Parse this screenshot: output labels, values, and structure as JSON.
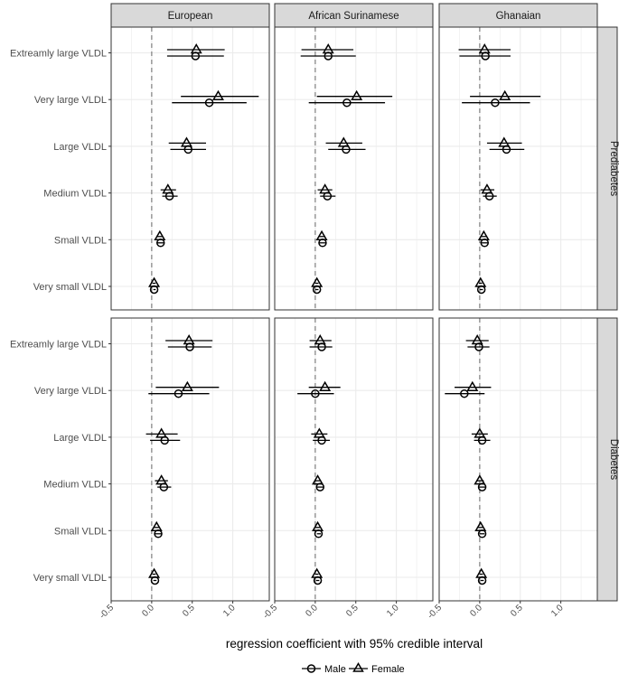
{
  "chart_data": {
    "type": "forest",
    "xlabel": "regression coefficient with 95% credible interval",
    "xlim": [
      -0.5,
      1.45
    ],
    "x_ticks": [
      -0.5,
      0.0,
      0.5,
      1.0
    ],
    "x_tick_labels": [
      "-0.5",
      "0.0",
      "0.5",
      "1.0"
    ],
    "reference_line": 0,
    "columns": [
      "European",
      "African Surinamese",
      "Ghanaian"
    ],
    "rows": [
      "Prediabetes",
      "Diabetes"
    ],
    "categories": [
      "Extreamly large VLDL",
      "Very large VLDL",
      "Large VLDL",
      "Medium VLDL",
      "Small VLDL",
      "Very small VLDL"
    ],
    "legend": [
      {
        "name": "Male",
        "marker": "circle"
      },
      {
        "name": "Female",
        "marker": "triangle"
      }
    ],
    "panels": [
      {
        "row": "Prediabetes",
        "column": "European",
        "male": [
          [
            0.54,
            0.19,
            0.89
          ],
          [
            0.71,
            0.25,
            1.17
          ],
          [
            0.45,
            0.23,
            0.67
          ],
          [
            0.22,
            0.13,
            0.32
          ],
          [
            0.11,
            0.07,
            0.15
          ],
          [
            0.03,
            0.02,
            0.05
          ]
        ],
        "female": [
          [
            0.55,
            0.19,
            0.9
          ],
          [
            0.82,
            0.36,
            1.32
          ],
          [
            0.43,
            0.21,
            0.67
          ],
          [
            0.2,
            0.11,
            0.3
          ],
          [
            0.1,
            0.06,
            0.14
          ],
          [
            0.03,
            0.01,
            0.05
          ]
        ]
      },
      {
        "row": "Prediabetes",
        "column": "African Surinamese",
        "male": [
          [
            0.16,
            -0.18,
            0.5
          ],
          [
            0.39,
            -0.08,
            0.86
          ],
          [
            0.38,
            0.16,
            0.62
          ],
          [
            0.15,
            0.06,
            0.25
          ],
          [
            0.09,
            0.05,
            0.13
          ],
          [
            0.02,
            0.0,
            0.04
          ]
        ],
        "female": [
          [
            0.16,
            -0.17,
            0.47
          ],
          [
            0.51,
            0.02,
            0.95
          ],
          [
            0.35,
            0.13,
            0.58
          ],
          [
            0.12,
            0.03,
            0.21
          ],
          [
            0.08,
            0.04,
            0.12
          ],
          [
            0.02,
            0.0,
            0.04
          ]
        ]
      },
      {
        "row": "Prediabetes",
        "column": "Ghanaian",
        "male": [
          [
            0.07,
            -0.25,
            0.38
          ],
          [
            0.19,
            -0.22,
            0.62
          ],
          [
            0.33,
            0.12,
            0.55
          ],
          [
            0.12,
            0.04,
            0.21
          ],
          [
            0.06,
            0.02,
            0.1
          ],
          [
            0.02,
            0.0,
            0.04
          ]
        ],
        "female": [
          [
            0.06,
            -0.26,
            0.38
          ],
          [
            0.31,
            -0.12,
            0.75
          ],
          [
            0.3,
            0.09,
            0.52
          ],
          [
            0.09,
            0.01,
            0.18
          ],
          [
            0.05,
            0.01,
            0.09
          ],
          [
            0.01,
            -0.01,
            0.03
          ]
        ]
      },
      {
        "row": "Diabetes",
        "column": "European",
        "male": [
          [
            0.47,
            0.2,
            0.74
          ],
          [
            0.33,
            -0.04,
            0.71
          ],
          [
            0.16,
            -0.02,
            0.35
          ],
          [
            0.15,
            0.07,
            0.24
          ],
          [
            0.08,
            0.04,
            0.12
          ],
          [
            0.04,
            0.02,
            0.06
          ]
        ],
        "female": [
          [
            0.46,
            0.17,
            0.75
          ],
          [
            0.44,
            0.05,
            0.83
          ],
          [
            0.12,
            -0.07,
            0.32
          ],
          [
            0.12,
            0.04,
            0.2
          ],
          [
            0.06,
            0.02,
            0.1
          ],
          [
            0.03,
            0.01,
            0.05
          ]
        ]
      },
      {
        "row": "Diabetes",
        "column": "African Surinamese",
        "male": [
          [
            0.08,
            -0.07,
            0.21
          ],
          [
            0.0,
            -0.22,
            0.23
          ],
          [
            0.08,
            -0.03,
            0.18
          ],
          [
            0.06,
            0.02,
            0.1
          ],
          [
            0.04,
            0.02,
            0.07
          ],
          [
            0.03,
            0.01,
            0.05
          ]
        ],
        "female": [
          [
            0.06,
            -0.07,
            0.2
          ],
          [
            0.12,
            -0.08,
            0.31
          ],
          [
            0.05,
            -0.05,
            0.15
          ],
          [
            0.03,
            -0.01,
            0.07
          ],
          [
            0.03,
            0.0,
            0.06
          ],
          [
            0.02,
            0.0,
            0.04
          ]
        ]
      },
      {
        "row": "Diabetes",
        "column": "Ghanaian",
        "male": [
          [
            -0.01,
            -0.15,
            0.12
          ],
          [
            -0.19,
            -0.43,
            0.06
          ],
          [
            0.03,
            -0.07,
            0.13
          ],
          [
            0.03,
            -0.01,
            0.08
          ],
          [
            0.03,
            0.0,
            0.06
          ],
          [
            0.03,
            0.01,
            0.05
          ]
        ],
        "female": [
          [
            -0.03,
            -0.17,
            0.11
          ],
          [
            -0.09,
            -0.31,
            0.14
          ],
          [
            0.0,
            -0.1,
            0.1
          ],
          [
            0.0,
            -0.04,
            0.05
          ],
          [
            0.01,
            -0.02,
            0.04
          ],
          [
            0.02,
            0.0,
            0.04
          ]
        ]
      }
    ]
  },
  "colors": {
    "strip_fill": "#d9d9d9",
    "panel_border": "#333333",
    "grid": "#ebebeb",
    "reference_line": "#7f7f7f",
    "marker": "#000000"
  }
}
